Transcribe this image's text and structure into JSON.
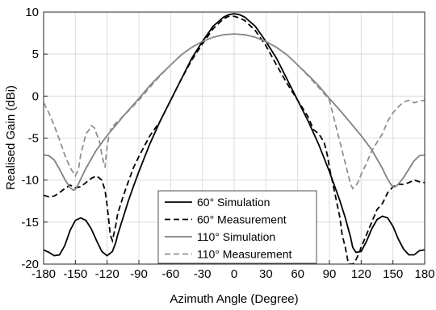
{
  "chart_data": {
    "type": "line",
    "xlabel": "Azimuth Angle (Degree)",
    "ylabel": "Realised Gain (dBi)",
    "xlim": [
      -180,
      180
    ],
    "ylim": [
      -20,
      10
    ],
    "xticks": [
      -180,
      -150,
      -120,
      -90,
      -60,
      -30,
      0,
      30,
      60,
      90,
      120,
      150,
      180
    ],
    "yticks": [
      -20,
      -15,
      -10,
      -5,
      0,
      5,
      10
    ],
    "grid": true,
    "legend_position": "bottom-center",
    "series": [
      {
        "name": "60° Simulation",
        "color": "#000000",
        "dash": "solid",
        "x": [
          -180,
          -175,
          -170,
          -165,
          -160,
          -155,
          -150,
          -145,
          -140,
          -135,
          -130,
          -125,
          -120,
          -115,
          -112,
          -110,
          -105,
          -100,
          -95,
          -90,
          -80,
          -70,
          -60,
          -50,
          -40,
          -30,
          -20,
          -10,
          -5,
          0,
          5,
          10,
          20,
          30,
          40,
          50,
          60,
          70,
          80,
          90,
          100,
          105,
          110,
          112,
          115,
          120,
          125,
          130,
          135,
          140,
          145,
          150,
          155,
          160,
          165,
          170,
          175,
          180
        ],
        "y": [
          -18.3,
          -18.6,
          -19.0,
          -18.9,
          -17.8,
          -16.0,
          -14.8,
          -14.5,
          -14.8,
          -15.8,
          -17.2,
          -18.5,
          -19.0,
          -18.5,
          -17.5,
          -16.5,
          -14.5,
          -12.5,
          -10.7,
          -9.0,
          -5.8,
          -3.0,
          -0.5,
          2.0,
          4.5,
          6.5,
          8.3,
          9.4,
          9.7,
          9.8,
          9.7,
          9.4,
          8.3,
          6.5,
          4.5,
          2.0,
          -0.5,
          -3.0,
          -5.8,
          -9.0,
          -12.5,
          -14.5,
          -16.8,
          -18.0,
          -18.6,
          -18.5,
          -17.3,
          -15.8,
          -14.7,
          -14.3,
          -14.5,
          -15.5,
          -17.0,
          -18.2,
          -18.9,
          -18.9,
          -18.4,
          -18.3
        ]
      },
      {
        "name": "60° Measurement",
        "color": "#000000",
        "dash": "dashed",
        "x": [
          -180,
          -175,
          -170,
          -165,
          -160,
          -155,
          -150,
          -145,
          -140,
          -135,
          -130,
          -125,
          -122,
          -120,
          -117,
          -115,
          -112,
          -110,
          -105,
          -100,
          -95,
          -90,
          -80,
          -70,
          -60,
          -50,
          -40,
          -30,
          -20,
          -10,
          -5,
          0,
          5,
          10,
          20,
          30,
          40,
          50,
          60,
          65,
          70,
          75,
          80,
          85,
          88,
          90,
          95,
          100,
          102,
          105,
          108,
          110,
          112,
          115,
          118,
          120,
          125,
          130,
          135,
          140,
          145,
          150,
          155,
          160,
          165,
          170,
          175,
          180
        ],
        "y": [
          -11.8,
          -12.0,
          -11.9,
          -11.5,
          -11.0,
          -10.6,
          -10.9,
          -10.8,
          -10.3,
          -9.8,
          -9.5,
          -10.0,
          -11.2,
          -13.0,
          -16.5,
          -17.2,
          -15.5,
          -14.0,
          -12.0,
          -10.2,
          -8.5,
          -7.2,
          -4.8,
          -3.0,
          -0.5,
          2.0,
          4.3,
          6.2,
          8.0,
          9.2,
          9.5,
          9.5,
          9.3,
          9.0,
          7.8,
          6.0,
          3.7,
          1.5,
          -0.5,
          -1.5,
          -2.5,
          -4.0,
          -4.5,
          -5.5,
          -7.0,
          -8.5,
          -11.5,
          -14.5,
          -16.5,
          -18.0,
          -20.0,
          -20.0,
          -20.0,
          -19.5,
          -18.7,
          -18.0,
          -16.5,
          -15.0,
          -13.5,
          -12.8,
          -11.5,
          -10.8,
          -10.5,
          -10.5,
          -10.3,
          -10.0,
          -10.2,
          -10.3
        ]
      },
      {
        "name": "110° Simulation",
        "color": "#808080",
        "dash": "solid",
        "x": [
          -180,
          -175,
          -170,
          -165,
          -160,
          -155,
          -152,
          -150,
          -148,
          -145,
          -140,
          -135,
          -130,
          -120,
          -110,
          -100,
          -90,
          -80,
          -70,
          -60,
          -50,
          -40,
          -30,
          -20,
          -10,
          0,
          10,
          20,
          30,
          40,
          50,
          60,
          70,
          80,
          90,
          100,
          110,
          120,
          130,
          135,
          140,
          145,
          148,
          150,
          152,
          155,
          160,
          165,
          170,
          175,
          180
        ],
        "y": [
          -7.0,
          -7.1,
          -7.6,
          -8.7,
          -9.9,
          -10.9,
          -11.2,
          -11.1,
          -10.7,
          -9.9,
          -8.6,
          -7.5,
          -6.4,
          -4.7,
          -3.2,
          -1.7,
          -0.3,
          1.2,
          2.5,
          3.7,
          4.9,
          5.8,
          6.5,
          7.0,
          7.3,
          7.4,
          7.3,
          7.0,
          6.5,
          5.8,
          4.9,
          3.7,
          2.5,
          1.2,
          -0.3,
          -1.7,
          -3.2,
          -4.7,
          -6.4,
          -7.5,
          -8.6,
          -9.9,
          -10.5,
          -10.8,
          -10.8,
          -10.5,
          -9.7,
          -8.7,
          -7.7,
          -7.1,
          -7.0
        ]
      },
      {
        "name": "110° Measurement",
        "color": "#909090",
        "dash": "dashed",
        "x": [
          -180,
          -175,
          -170,
          -165,
          -160,
          -155,
          -150,
          -147,
          -145,
          -142,
          -140,
          -137,
          -135,
          -132,
          -130,
          -127,
          -125,
          -122,
          -120,
          -118,
          -116,
          -114,
          -110,
          -100,
          -90,
          -80,
          -70,
          -60,
          -50,
          -40,
          -30,
          -20,
          -10,
          0,
          10,
          20,
          30,
          40,
          50,
          60,
          70,
          80,
          85,
          90,
          95,
          100,
          105,
          108,
          110,
          112,
          115,
          118,
          120,
          125,
          130,
          135,
          140,
          145,
          150,
          155,
          160,
          165,
          170,
          175,
          180
        ],
        "y": [
          -0.8,
          -2.0,
          -3.5,
          -5.2,
          -7.0,
          -8.5,
          -9.5,
          -8.7,
          -7.0,
          -5.5,
          -4.5,
          -4.0,
          -3.5,
          -3.8,
          -4.5,
          -5.5,
          -7.0,
          -8.5,
          -6.0,
          -4.5,
          -3.8,
          -3.5,
          -3.0,
          -1.8,
          -0.5,
          1.0,
          2.4,
          3.7,
          4.9,
          5.8,
          6.5,
          7.0,
          7.3,
          7.4,
          7.3,
          7.0,
          6.5,
          5.8,
          4.9,
          3.7,
          2.4,
          1.0,
          0.3,
          -0.5,
          -3.0,
          -5.5,
          -8.0,
          -9.5,
          -10.5,
          -11.0,
          -10.7,
          -10.0,
          -9.3,
          -8.0,
          -6.5,
          -5.5,
          -4.5,
          -3.0,
          -2.0,
          -1.3,
          -0.7,
          -0.5,
          -0.8,
          -0.6,
          -0.5
        ]
      }
    ]
  }
}
